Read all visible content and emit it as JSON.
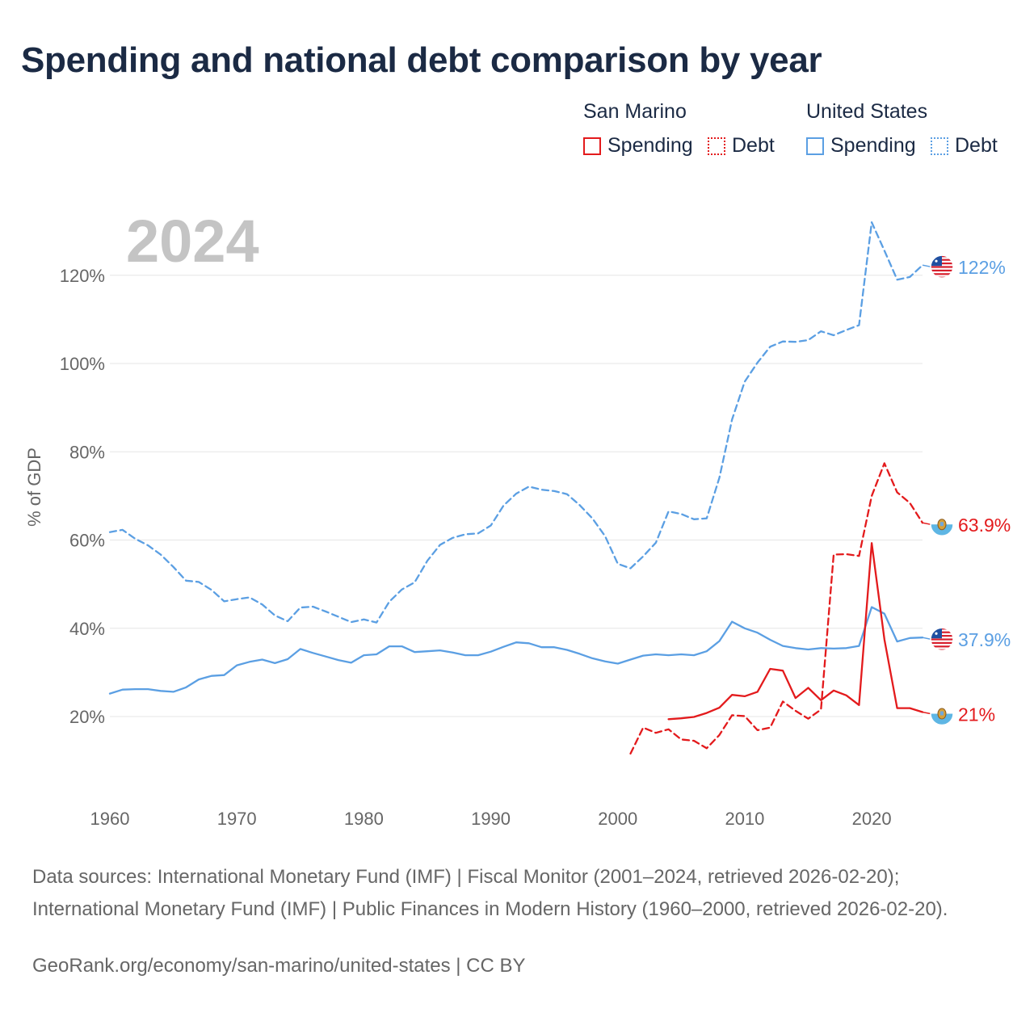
{
  "title": "Spending and national debt comparison by year",
  "legend": {
    "groups": [
      {
        "name": "San Marino",
        "color": "#e31a1c",
        "items": [
          {
            "label": "Spending",
            "style": "solid"
          },
          {
            "label": "Debt",
            "style": "dotted"
          }
        ]
      },
      {
        "name": "United States",
        "color": "#5b9fe3",
        "items": [
          {
            "label": "Spending",
            "style": "solid"
          },
          {
            "label": "Debt",
            "style": "dotted"
          }
        ]
      }
    ]
  },
  "chart_data": {
    "type": "line",
    "year_label": "2024",
    "ylabel": "% of GDP",
    "xlabel": "",
    "xlim": [
      1960,
      2024
    ],
    "ylim": [
      0,
      140
    ],
    "x_ticks": [
      "1960",
      "1970",
      "1980",
      "1990",
      "2000",
      "2010",
      "2020"
    ],
    "y_ticks": [
      {
        "value": 20,
        "label": "20%"
      },
      {
        "value": 40,
        "label": "40%"
      },
      {
        "value": 60,
        "label": "60%"
      },
      {
        "value": 80,
        "label": "80%"
      },
      {
        "value": 100,
        "label": "100%"
      },
      {
        "value": 120,
        "label": "120%"
      }
    ],
    "series": [
      {
        "name": "United States Debt",
        "country": "United States",
        "measure": "Debt",
        "color": "#5b9fe3",
        "dash": "dashed",
        "end_label": "122%",
        "x": [
          1960,
          1961,
          1962,
          1963,
          1964,
          1965,
          1966,
          1967,
          1968,
          1969,
          1970,
          1971,
          1972,
          1973,
          1974,
          1975,
          1976,
          1977,
          1978,
          1979,
          1980,
          1981,
          1982,
          1983,
          1984,
          1985,
          1986,
          1987,
          1988,
          1989,
          1990,
          1991,
          1992,
          1993,
          1994,
          1995,
          1996,
          1997,
          1998,
          1999,
          2000,
          2001,
          2002,
          2003,
          2004,
          2005,
          2006,
          2007,
          2008,
          2009,
          2010,
          2011,
          2012,
          2013,
          2014,
          2015,
          2016,
          2017,
          2018,
          2019,
          2020,
          2021,
          2022,
          2023,
          2024
        ],
        "values": [
          61.8,
          62.3,
          60.3,
          58.8,
          56.7,
          53.9,
          50.8,
          50.5,
          48.7,
          46.1,
          46.6,
          47.0,
          45.4,
          42.9,
          41.6,
          44.7,
          44.9,
          43.8,
          42.6,
          41.4,
          42.0,
          41.3,
          46.0,
          48.8,
          50.4,
          55.3,
          58.9,
          60.5,
          61.3,
          61.5,
          63.3,
          67.8,
          70.5,
          72.1,
          71.4,
          71.1,
          70.4,
          67.9,
          64.9,
          60.9,
          54.6,
          53.6,
          56.3,
          59.4,
          66.5,
          65.9,
          64.7,
          64.9,
          74.1,
          87.3,
          95.9,
          100.2,
          103.8,
          105.0,
          104.9,
          105.3,
          107.3,
          106.4,
          107.6,
          108.7,
          132.0,
          125.6,
          119.0,
          119.6,
          122.3
        ]
      },
      {
        "name": "United States Spending",
        "country": "United States",
        "measure": "Spending",
        "color": "#5b9fe3",
        "dash": "solid",
        "end_label": "37.9%",
        "x": [
          1960,
          1961,
          1962,
          1963,
          1964,
          1965,
          1966,
          1967,
          1968,
          1969,
          1970,
          1971,
          1972,
          1973,
          1974,
          1975,
          1976,
          1977,
          1978,
          1979,
          1980,
          1981,
          1982,
          1983,
          1984,
          1985,
          1986,
          1987,
          1988,
          1989,
          1990,
          1991,
          1992,
          1993,
          1994,
          1995,
          1996,
          1997,
          1998,
          1999,
          2000,
          2001,
          2002,
          2003,
          2004,
          2005,
          2006,
          2007,
          2008,
          2009,
          2010,
          2011,
          2012,
          2013,
          2014,
          2015,
          2016,
          2017,
          2018,
          2019,
          2020,
          2021,
          2022,
          2023,
          2024
        ],
        "values": [
          25.2,
          26.1,
          26.2,
          26.2,
          25.8,
          25.6,
          26.6,
          28.4,
          29.2,
          29.4,
          31.6,
          32.4,
          32.9,
          32.1,
          33.0,
          35.3,
          34.4,
          33.6,
          32.8,
          32.2,
          33.9,
          34.1,
          35.9,
          35.9,
          34.6,
          34.8,
          35.0,
          34.5,
          33.9,
          33.9,
          34.7,
          35.8,
          36.8,
          36.6,
          35.7,
          35.7,
          35.1,
          34.2,
          33.2,
          32.5,
          32.0,
          32.9,
          33.8,
          34.1,
          33.9,
          34.1,
          33.9,
          34.8,
          37.1,
          41.5,
          40.0,
          39.0,
          37.4,
          36.0,
          35.5,
          35.2,
          35.5,
          35.4,
          35.5,
          36.0,
          44.8,
          43.3,
          37.0,
          37.8,
          37.9
        ]
      },
      {
        "name": "San Marino Debt",
        "country": "San Marino",
        "measure": "Debt",
        "color": "#e31a1c",
        "dash": "dashed",
        "end_label": "63.9%",
        "x": [
          2001,
          2002,
          2003,
          2004,
          2005,
          2006,
          2007,
          2008,
          2009,
          2010,
          2011,
          2012,
          2013,
          2014,
          2015,
          2016,
          2017,
          2018,
          2019,
          2020,
          2021,
          2022,
          2023,
          2024
        ],
        "values": [
          11.6,
          17.5,
          16.3,
          17.1,
          14.8,
          14.5,
          12.8,
          15.8,
          20.3,
          20.1,
          16.9,
          17.5,
          23.4,
          21.3,
          19.5,
          21.6,
          56.7,
          56.8,
          56.4,
          70.0,
          77.4,
          70.8,
          68.4,
          63.9
        ]
      },
      {
        "name": "San Marino Spending",
        "country": "San Marino",
        "measure": "Spending",
        "color": "#e31a1c",
        "dash": "solid",
        "end_label": "21%",
        "x": [
          2004,
          2005,
          2006,
          2007,
          2008,
          2009,
          2010,
          2011,
          2012,
          2013,
          2014,
          2015,
          2016,
          2017,
          2018,
          2019,
          2020,
          2021,
          2022,
          2023,
          2024
        ],
        "values": [
          19.4,
          19.6,
          19.9,
          20.8,
          22.0,
          24.9,
          24.6,
          25.6,
          30.8,
          30.4,
          24.2,
          26.5,
          23.7,
          25.9,
          24.8,
          22.6,
          59.3,
          37.5,
          21.9,
          21.9,
          21.0
        ]
      }
    ]
  },
  "footer": {
    "sources": "Data sources: International Monetary Fund (IMF) | Fiscal Monitor (2001–2024, retrieved 2026-02-20); International Monetary Fund (IMF) | Public Finances in Modern History (1960–2000, retrieved 2026-02-20).",
    "credit": "GeoRank.org/economy/san-marino/united-states | CC BY"
  }
}
